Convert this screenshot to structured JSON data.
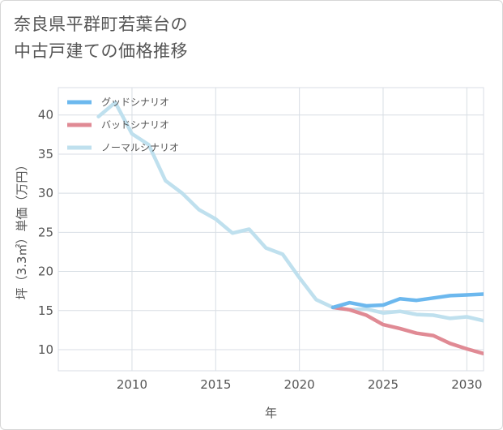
{
  "title_lines": [
    "奈良県平群町若葉台の",
    "中古戸建ての価格推移"
  ],
  "chart_data": {
    "type": "line",
    "title": "奈良県平群町若葉台の中古戸建ての価格推移",
    "xlabel": "年",
    "ylabel": "坪（3.3㎡）単価（万円）",
    "xlim": [
      2005.6,
      2031
    ],
    "ylim": [
      7.3,
      43.5
    ],
    "x_ticks": [
      2010,
      2015,
      2020,
      2025,
      2030
    ],
    "y_ticks": [
      10,
      15,
      20,
      25,
      30,
      35,
      40
    ],
    "grid": true,
    "legend_position": "top-left",
    "series": [
      {
        "name": "グッドシナリオ",
        "color": "#6cb8ee",
        "points": [
          [
            2022,
            15.4
          ],
          [
            2023,
            16.0
          ],
          [
            2024,
            15.6
          ],
          [
            2025,
            15.7
          ],
          [
            2026,
            16.5
          ],
          [
            2027,
            16.3
          ],
          [
            2028,
            16.6
          ],
          [
            2029,
            16.9
          ],
          [
            2030,
            17.0
          ],
          [
            2031,
            17.1
          ]
        ]
      },
      {
        "name": "バッドシナリオ",
        "color": "#e08a94",
        "points": [
          [
            2022,
            15.4
          ],
          [
            2023,
            15.1
          ],
          [
            2024,
            14.4
          ],
          [
            2025,
            13.2
          ],
          [
            2026,
            12.7
          ],
          [
            2027,
            12.1
          ],
          [
            2028,
            11.8
          ],
          [
            2029,
            10.8
          ],
          [
            2030,
            10.1
          ],
          [
            2031,
            9.5
          ]
        ]
      },
      {
        "name": "ノーマルシナリオ",
        "color": "#bfe0ee",
        "points": [
          [
            2008,
            39.8
          ],
          [
            2009,
            41.6
          ],
          [
            2010,
            37.6
          ],
          [
            2011,
            36.2
          ],
          [
            2012,
            31.6
          ],
          [
            2013,
            30.0
          ],
          [
            2014,
            27.9
          ],
          [
            2015,
            26.7
          ],
          [
            2016,
            24.9
          ],
          [
            2017,
            25.4
          ],
          [
            2018,
            23.0
          ],
          [
            2019,
            22.2
          ],
          [
            2020,
            19.2
          ],
          [
            2021,
            16.4
          ],
          [
            2022,
            15.4
          ],
          [
            2023,
            15.1
          ],
          [
            2024,
            15.2
          ],
          [
            2025,
            14.7
          ],
          [
            2026,
            14.9
          ],
          [
            2027,
            14.5
          ],
          [
            2028,
            14.4
          ],
          [
            2029,
            14.0
          ],
          [
            2030,
            14.2
          ],
          [
            2031,
            13.7
          ]
        ]
      }
    ]
  }
}
